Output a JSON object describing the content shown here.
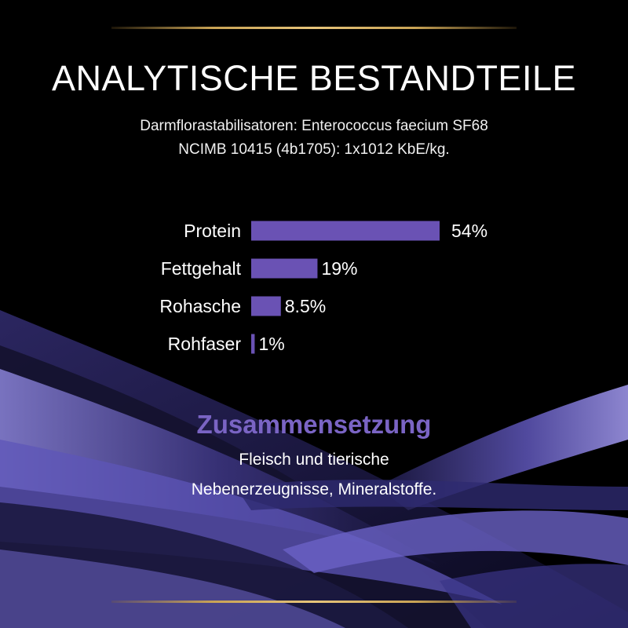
{
  "header": {
    "title": "ANALYTISCHE BESTANDTEILE",
    "subtitle_line1": "Darmflorastabilisatoren: Enterococcus faecium SF68",
    "subtitle_line2": "NCIMB 10415 (4b1705): 1x1012 KbE/kg."
  },
  "chart_data": {
    "type": "bar",
    "orientation": "horizontal",
    "categories": [
      "Protein",
      "Fettgehalt",
      "Rohasche",
      "Rohfaser"
    ],
    "values": [
      54,
      19,
      8.5,
      1
    ],
    "value_labels": [
      "54%",
      "19%",
      "8.5%",
      "1%"
    ],
    "unit": "%",
    "bar_color": "#6a52b4",
    "grid": false
  },
  "composition": {
    "heading": "Zusammensetzung",
    "line1": "Fleisch und tierische",
    "line2": "Nebenerzeugnisse, Mineralstoffe."
  },
  "colors": {
    "background": "#000000",
    "accent_purple": "#7a64c4",
    "gold": "#c9a355"
  }
}
